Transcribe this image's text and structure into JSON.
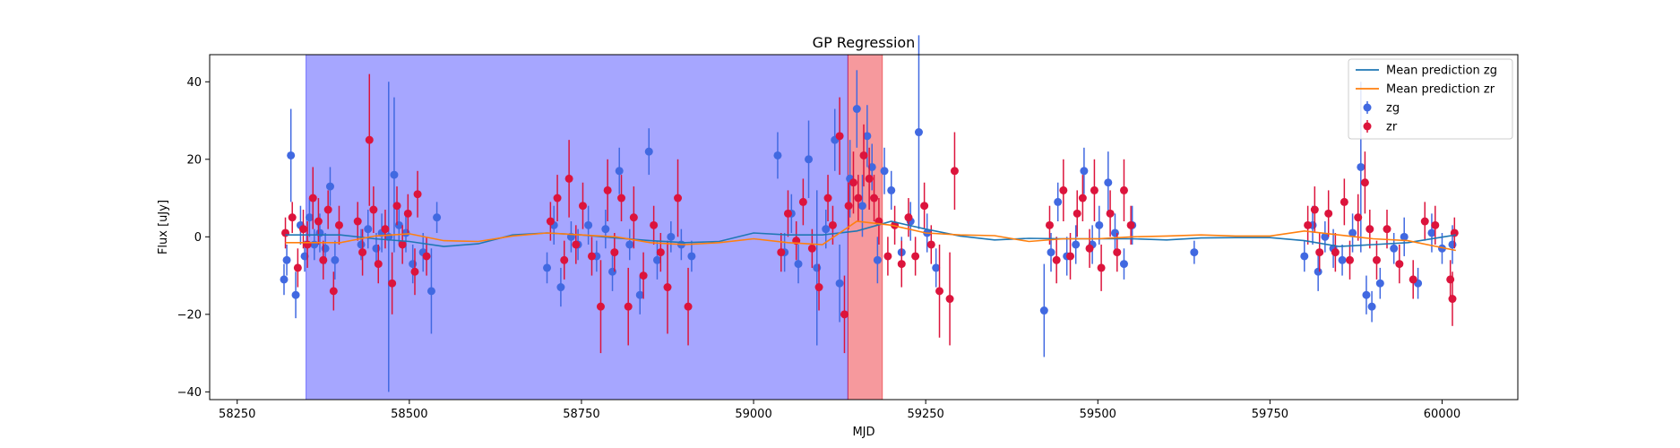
{
  "chart_data": {
    "type": "scatter",
    "title": "GP Regression",
    "xlabel": "MJD",
    "ylabel": "Flux [uJy]",
    "xlim": [
      58210,
      60110
    ],
    "ylim": [
      -42,
      47
    ],
    "xticks": [
      58250,
      58500,
      58750,
      59000,
      59250,
      59500,
      59750,
      60000
    ],
    "yticks": [
      -40,
      -20,
      0,
      20,
      40
    ],
    "grid": false,
    "legend_position": "top-right",
    "shaded_regions": [
      {
        "x0": 58350,
        "x1": 59137,
        "color": "#0000ff",
        "opacity": 0.35
      },
      {
        "x0": 59137,
        "x1": 59187,
        "color": "#e8000b",
        "opacity": 0.4
      }
    ],
    "series": [
      {
        "name": "Mean prediction zg",
        "kind": "line",
        "color": "#1f77b4",
        "x": [
          58320,
          58400,
          58450,
          58500,
          58550,
          58600,
          58650,
          58700,
          58750,
          58800,
          58850,
          58900,
          58950,
          59000,
          59050,
          59100,
          59150,
          59200,
          59250,
          59300,
          59350,
          59400,
          59450,
          59500,
          59550,
          59600,
          59650,
          59700,
          59750,
          59800,
          59850,
          59900,
          59950,
          60020
        ],
        "y": [
          0.5,
          0.5,
          -0.5,
          -1.2,
          -2.5,
          -1.8,
          0.5,
          1.0,
          0.5,
          -0.3,
          -1.0,
          -1.5,
          -1.2,
          1.0,
          0.5,
          0.5,
          1.5,
          4.0,
          2.0,
          0.2,
          -0.8,
          -0.4,
          -0.5,
          -0.5,
          -0.5,
          -0.8,
          -0.3,
          -0.2,
          -0.2,
          -1.0,
          -2.5,
          -2.0,
          -1.5,
          0.5
        ]
      },
      {
        "name": "Mean prediction zr",
        "kind": "line",
        "color": "#ff7f0e",
        "x": [
          58320,
          58400,
          58450,
          58500,
          58550,
          58600,
          58650,
          58700,
          58750,
          58800,
          58850,
          58900,
          58950,
          59000,
          59050,
          59100,
          59150,
          59200,
          59250,
          59300,
          59350,
          59400,
          59450,
          59500,
          59550,
          59600,
          59650,
          59700,
          59750,
          59800,
          59850,
          59900,
          59950,
          60020
        ],
        "y": [
          -1.5,
          -1.5,
          0.2,
          0.8,
          -1.0,
          -1.2,
          0.2,
          1.0,
          0.5,
          0.0,
          -1.5,
          -2.0,
          -1.5,
          -0.5,
          -1.5,
          -2.0,
          4.0,
          3.0,
          1.0,
          0.5,
          0.3,
          -1.2,
          -0.5,
          -0.5,
          0.0,
          0.2,
          0.5,
          0.2,
          0.2,
          1.5,
          0.5,
          -0.5,
          -1.0,
          -3.5
        ]
      },
      {
        "name": "zg",
        "kind": "errorbar",
        "color": "#4169e1",
        "points": [
          [
            58318,
            -11,
            4
          ],
          [
            58322,
            -6,
            4
          ],
          [
            58328,
            21,
            12
          ],
          [
            58335,
            -15,
            6
          ],
          [
            58342,
            3,
            5
          ],
          [
            58348,
            -5,
            4
          ],
          [
            58355,
            5,
            5
          ],
          [
            58362,
            -2,
            4
          ],
          [
            58370,
            1,
            5
          ],
          [
            58378,
            -3,
            4
          ],
          [
            58385,
            13,
            5
          ],
          [
            58392,
            -6,
            5
          ],
          [
            58430,
            -2,
            4
          ],
          [
            58440,
            2,
            5
          ],
          [
            58452,
            -3,
            4
          ],
          [
            58460,
            1,
            5
          ],
          [
            58470,
            0,
            40
          ],
          [
            58478,
            16,
            20
          ],
          [
            58485,
            3,
            5
          ],
          [
            58495,
            1,
            5
          ],
          [
            58505,
            -7,
            5
          ],
          [
            58520,
            -4,
            5
          ],
          [
            58532,
            -14,
            11
          ],
          [
            58540,
            5,
            4
          ],
          [
            58700,
            -8,
            4
          ],
          [
            58710,
            3,
            5
          ],
          [
            58720,
            -13,
            5
          ],
          [
            58735,
            0,
            4
          ],
          [
            58745,
            -2,
            4
          ],
          [
            58760,
            3,
            5
          ],
          [
            58772,
            -5,
            4
          ],
          [
            58785,
            2,
            5
          ],
          [
            58795,
            -9,
            5
          ],
          [
            58805,
            17,
            6
          ],
          [
            58820,
            -2,
            4
          ],
          [
            58835,
            -15,
            5
          ],
          [
            58848,
            22,
            6
          ],
          [
            58860,
            -6,
            5
          ],
          [
            58880,
            0,
            4
          ],
          [
            58895,
            -2,
            4
          ],
          [
            58910,
            -5,
            4
          ],
          [
            59035,
            21,
            6
          ],
          [
            59045,
            -4,
            5
          ],
          [
            59055,
            6,
            5
          ],
          [
            59065,
            -7,
            5
          ],
          [
            59080,
            20,
            10
          ],
          [
            59092,
            -8,
            20
          ],
          [
            59105,
            2,
            5
          ],
          [
            59118,
            25,
            8
          ],
          [
            59125,
            -12,
            10
          ],
          [
            59140,
            15,
            10
          ],
          [
            59150,
            33,
            10
          ],
          [
            59158,
            8,
            8
          ],
          [
            59165,
            26,
            8
          ],
          [
            59172,
            18,
            6
          ],
          [
            59180,
            -6,
            6
          ],
          [
            59190,
            17,
            6
          ],
          [
            59200,
            12,
            5
          ],
          [
            59215,
            -4,
            4
          ],
          [
            59228,
            4,
            5
          ],
          [
            59240,
            27,
            25
          ],
          [
            59252,
            1,
            5
          ],
          [
            59265,
            -8,
            5
          ],
          [
            59422,
            -19,
            12
          ],
          [
            59432,
            -4,
            5
          ],
          [
            59442,
            9,
            5
          ],
          [
            59455,
            -5,
            5
          ],
          [
            59468,
            -2,
            5
          ],
          [
            59480,
            17,
            6
          ],
          [
            59492,
            -2,
            5
          ],
          [
            59502,
            3,
            5
          ],
          [
            59515,
            14,
            8
          ],
          [
            59525,
            1,
            5
          ],
          [
            59538,
            -7,
            4
          ],
          [
            59550,
            3,
            5
          ],
          [
            59640,
            -4,
            3
          ],
          [
            59800,
            -5,
            4
          ],
          [
            59812,
            3,
            5
          ],
          [
            59820,
            -9,
            5
          ],
          [
            59830,
            0,
            4
          ],
          [
            59842,
            -3,
            5
          ],
          [
            59855,
            -6,
            4
          ],
          [
            59870,
            1,
            5
          ],
          [
            59882,
            18,
            22
          ],
          [
            59890,
            -15,
            5
          ],
          [
            59898,
            -18,
            4
          ],
          [
            59910,
            -12,
            4
          ],
          [
            59930,
            -3,
            4
          ],
          [
            59945,
            0,
            5
          ],
          [
            59965,
            -12,
            4
          ],
          [
            59985,
            1,
            5
          ],
          [
            60000,
            -3,
            4
          ],
          [
            60015,
            -2,
            5
          ]
        ]
      },
      {
        "name": "zr",
        "kind": "errorbar",
        "color": "#dc143c",
        "points": [
          [
            58320,
            1,
            4
          ],
          [
            58330,
            5,
            4
          ],
          [
            58338,
            -8,
            5
          ],
          [
            58346,
            2,
            5
          ],
          [
            58352,
            -2,
            6
          ],
          [
            58360,
            10,
            8
          ],
          [
            58368,
            4,
            6
          ],
          [
            58375,
            -6,
            5
          ],
          [
            58382,
            7,
            5
          ],
          [
            58390,
            -14,
            5
          ],
          [
            58398,
            3,
            5
          ],
          [
            58425,
            4,
            5
          ],
          [
            58432,
            -4,
            6
          ],
          [
            58442,
            25,
            17
          ],
          [
            58448,
            7,
            6
          ],
          [
            58455,
            -7,
            5
          ],
          [
            58465,
            2,
            5
          ],
          [
            58475,
            -12,
            8
          ],
          [
            58482,
            8,
            5
          ],
          [
            58490,
            -2,
            5
          ],
          [
            58498,
            6,
            5
          ],
          [
            58508,
            -9,
            6
          ],
          [
            58512,
            11,
            6
          ],
          [
            58525,
            -5,
            5
          ],
          [
            58705,
            4,
            5
          ],
          [
            58715,
            10,
            6
          ],
          [
            58725,
            -6,
            5
          ],
          [
            58732,
            15,
            10
          ],
          [
            58742,
            -2,
            5
          ],
          [
            58752,
            8,
            6
          ],
          [
            58765,
            -5,
            5
          ],
          [
            58778,
            -18,
            12
          ],
          [
            58788,
            12,
            8
          ],
          [
            58798,
            -4,
            5
          ],
          [
            58808,
            10,
            6
          ],
          [
            58818,
            -18,
            10
          ],
          [
            58826,
            5,
            8
          ],
          [
            58840,
            -10,
            6
          ],
          [
            58855,
            3,
            5
          ],
          [
            58865,
            -4,
            5
          ],
          [
            58875,
            -13,
            12
          ],
          [
            58890,
            10,
            10
          ],
          [
            58905,
            -18,
            10
          ],
          [
            59040,
            -4,
            5
          ],
          [
            59050,
            6,
            6
          ],
          [
            59062,
            -1,
            5
          ],
          [
            59072,
            9,
            6
          ],
          [
            59085,
            -3,
            5
          ],
          [
            59095,
            -13,
            6
          ],
          [
            59108,
            10,
            6
          ],
          [
            59115,
            3,
            5
          ],
          [
            59125,
            26,
            10
          ],
          [
            59132,
            -20,
            10
          ],
          [
            59138,
            8,
            6
          ],
          [
            59145,
            14,
            8
          ],
          [
            59152,
            10,
            6
          ],
          [
            59160,
            21,
            8
          ],
          [
            59168,
            15,
            8
          ],
          [
            59175,
            10,
            6
          ],
          [
            59182,
            4,
            6
          ],
          [
            59195,
            -5,
            5
          ],
          [
            59205,
            3,
            5
          ],
          [
            59215,
            -7,
            6
          ],
          [
            59225,
            5,
            5
          ],
          [
            59235,
            -5,
            5
          ],
          [
            59248,
            8,
            6
          ],
          [
            59258,
            -2,
            5
          ],
          [
            59270,
            -14,
            12
          ],
          [
            59285,
            -16,
            12
          ],
          [
            59292,
            17,
            10
          ],
          [
            59430,
            3,
            5
          ],
          [
            59440,
            -6,
            6
          ],
          [
            59450,
            12,
            8
          ],
          [
            59460,
            -5,
            6
          ],
          [
            59470,
            6,
            6
          ],
          [
            59478,
            10,
            6
          ],
          [
            59488,
            -3,
            5
          ],
          [
            59495,
            12,
            8
          ],
          [
            59505,
            -8,
            6
          ],
          [
            59518,
            6,
            6
          ],
          [
            59528,
            -4,
            5
          ],
          [
            59538,
            12,
            8
          ],
          [
            59548,
            3,
            5
          ],
          [
            59805,
            3,
            5
          ],
          [
            59815,
            7,
            6
          ],
          [
            59822,
            -4,
            5
          ],
          [
            59835,
            6,
            6
          ],
          [
            59845,
            -4,
            5
          ],
          [
            59858,
            9,
            6
          ],
          [
            59866,
            -6,
            5
          ],
          [
            59878,
            5,
            6
          ],
          [
            59888,
            14,
            8
          ],
          [
            59895,
            2,
            5
          ],
          [
            59905,
            -6,
            5
          ],
          [
            59920,
            2,
            5
          ],
          [
            59938,
            -7,
            5
          ],
          [
            59958,
            -11,
            5
          ],
          [
            59975,
            4,
            5
          ],
          [
            59990,
            3,
            5
          ],
          [
            60012,
            -11,
            5
          ],
          [
            60015,
            -16,
            7
          ],
          [
            60018,
            1,
            4
          ]
        ]
      }
    ]
  }
}
